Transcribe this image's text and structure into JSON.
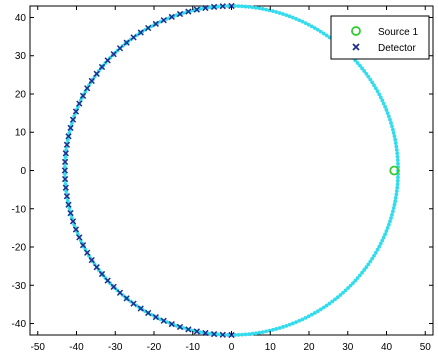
{
  "chart_data": {
    "type": "scatter",
    "title": "",
    "xlabel": "",
    "ylabel": "",
    "xlim": [
      -52,
      52
    ],
    "ylim": [
      -43,
      43
    ],
    "xticks": [
      -50,
      -40,
      -30,
      -20,
      -10,
      0,
      10,
      20,
      30,
      40,
      50
    ],
    "yticks": [
      -40,
      -30,
      -20,
      -10,
      0,
      10,
      20,
      30,
      40
    ],
    "grid": false,
    "legend_position": "top-right",
    "series": [
      {
        "label": "Source 1",
        "marker": "circle",
        "color": "#33cc33",
        "points": [
          [
            42,
            0
          ]
        ]
      },
      {
        "label": "Detector",
        "marker": "x",
        "color": "#1f2f8f",
        "description_points": "x marks along left semicircle, radius 43, angles 90 to 270 deg, 3 deg step",
        "radius": 43,
        "angle_start_deg": 90,
        "angle_end_deg": 270,
        "angle_step_deg": 3
      },
      {
        "label": "",
        "marker": "dot",
        "color": "#33dcec",
        "radius": 43,
        "angle_start_deg": 0,
        "angle_end_deg": 360,
        "angle_step_deg": 1.2
      }
    ],
    "legend": [
      {
        "label": "Source 1",
        "marker": "circle",
        "color": "#33cc33"
      },
      {
        "label": "Detector",
        "marker": "x",
        "color": "#1f2f8f"
      }
    ]
  }
}
